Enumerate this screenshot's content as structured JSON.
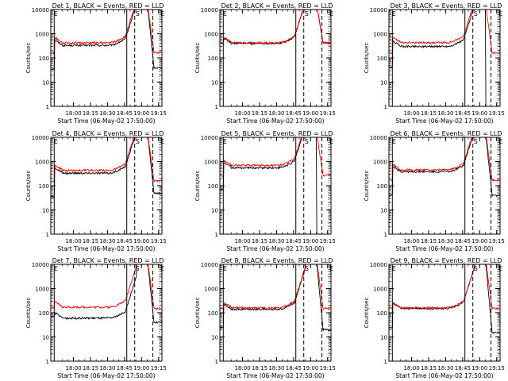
{
  "chart_data": {
    "type": "line",
    "yscale": "log",
    "ylim": [
      1,
      10000
    ],
    "yticks": [
      1,
      10,
      100,
      1000,
      10000
    ],
    "ytick_labels": [
      "1",
      "10",
      "100",
      "1000",
      "10000"
    ],
    "xticks": [
      "18:00",
      "18:15",
      "18:30",
      "18:45",
      "19:00",
      "19:15"
    ],
    "xlim_minutes": [
      -10,
      88
    ],
    "ylabel": "Counts/sec",
    "xlabel": "Start Time (06-May-02 17:50:00)",
    "vlines": {
      "solid_min": [
        -7,
        57
      ],
      "dashed_min": [
        64,
        80
      ],
      "dotted_min": [
        86
      ]
    },
    "markers": [
      {
        "label": "S",
        "x_min": 64
      },
      {
        "label": "E",
        "x_min": -8
      },
      {
        "label": "E",
        "x_min": 86
      }
    ],
    "series_colors": {
      "events": "#000000",
      "lld": "#ff0000"
    },
    "panels": [
      {
        "title": "Det 1, BLACK = Events, RED = LLD",
        "pre_lld": 160,
        "pre_ev": 36,
        "plateau_lld": 420,
        "plateau_ev": 330,
        "post_lld": 170,
        "post_ev": 40
      },
      {
        "title": "Det 2, BLACK = Events, RED = LLD",
        "pre_lld": 420,
        "pre_ev": 420,
        "plateau_lld": 420,
        "plateau_ev": 400,
        "post_lld": 420,
        "post_ev": 420
      },
      {
        "title": "Det 3, BLACK = Events, RED = LLD",
        "pre_lld": 160,
        "pre_ev": 40,
        "plateau_lld": 430,
        "plateau_ev": 300,
        "post_lld": 160,
        "post_ev": 0
      },
      {
        "title": "Det 4, BLACK = Events, RED = LLD",
        "pre_lld": 160,
        "pre_ev": 35,
        "plateau_lld": 430,
        "plateau_ev": 330,
        "post_lld": 160,
        "post_ev": 50
      },
      {
        "title": "Det 5, BLACK = Events, RED = LLD",
        "pre_lld": 250,
        "pre_ev": 70,
        "plateau_lld": 700,
        "plateau_ev": 550,
        "post_lld": 270,
        "post_ev": 0
      },
      {
        "title": "Det 6, BLACK = Events, RED = LLD",
        "pre_lld": 170,
        "pre_ev": 40,
        "plateau_lld": 450,
        "plateau_ev": 380,
        "post_lld": 170,
        "post_ev": 40
      },
      {
        "title": "Det 7, BLACK = Events, RED = LLD",
        "pre_lld": 160,
        "pre_ev": 70,
        "plateau_lld": 170,
        "plateau_ev": 60,
        "post_lld": 150,
        "post_ev": 40
      },
      {
        "title": "Det 8, BLACK = Events, RED = LLD",
        "pre_lld": 150,
        "pre_ev": 25,
        "plateau_lld": 160,
        "plateau_ev": 140,
        "post_lld": 150,
        "post_ev": 20
      },
      {
        "title": "Det 9, BLACK = Events, RED = LLD",
        "pre_lld": 150,
        "pre_ev": 25,
        "plateau_lld": 160,
        "plateau_ev": 150,
        "post_lld": 150,
        "post_ev": 15
      }
    ]
  }
}
